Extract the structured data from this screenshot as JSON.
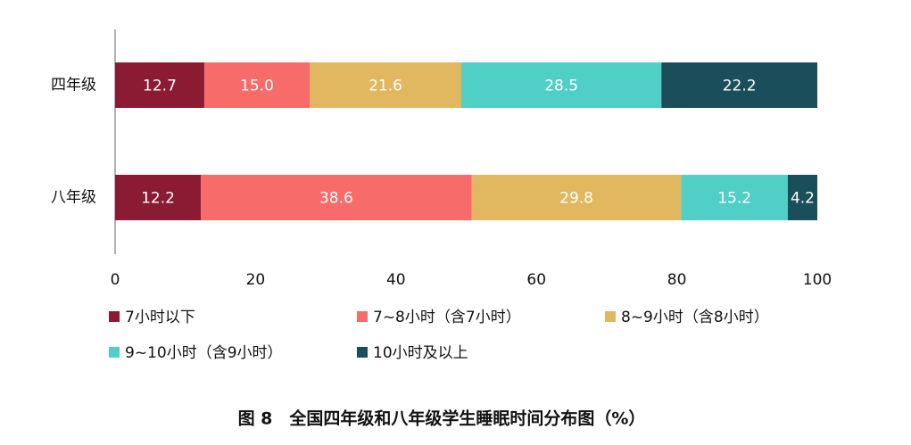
{
  "chart_data": {
    "type": "stacked-bar-horizontal",
    "title": "图 8　全国四年级和八年级学生睡眠时间分布图（%）",
    "categories": [
      "四年级",
      "八年级"
    ],
    "series": [
      {
        "name": "7小时以下",
        "color": "#8b1a33",
        "values": [
          12.7,
          12.2
        ]
      },
      {
        "name": "7~8小时（含7小时）",
        "color": "#f76b6b",
        "values": [
          15.0,
          38.6
        ],
        "value_labels": [
          "15.0",
          "38.6"
        ]
      },
      {
        "name": "8~9小时（含8小时）",
        "color": "#e1b75f",
        "values": [
          21.6,
          29.8
        ]
      },
      {
        "name": "9~10小时（含9小时）",
        "color": "#4fcfc6",
        "values": [
          28.5,
          15.2
        ]
      },
      {
        "name": "10小时及以上",
        "color": "#1b4e5b",
        "values": [
          22.2,
          4.2
        ]
      }
    ],
    "xlim": [
      0,
      100
    ],
    "xticks": [
      0,
      20,
      40,
      60,
      80,
      100
    ],
    "grid": false
  }
}
